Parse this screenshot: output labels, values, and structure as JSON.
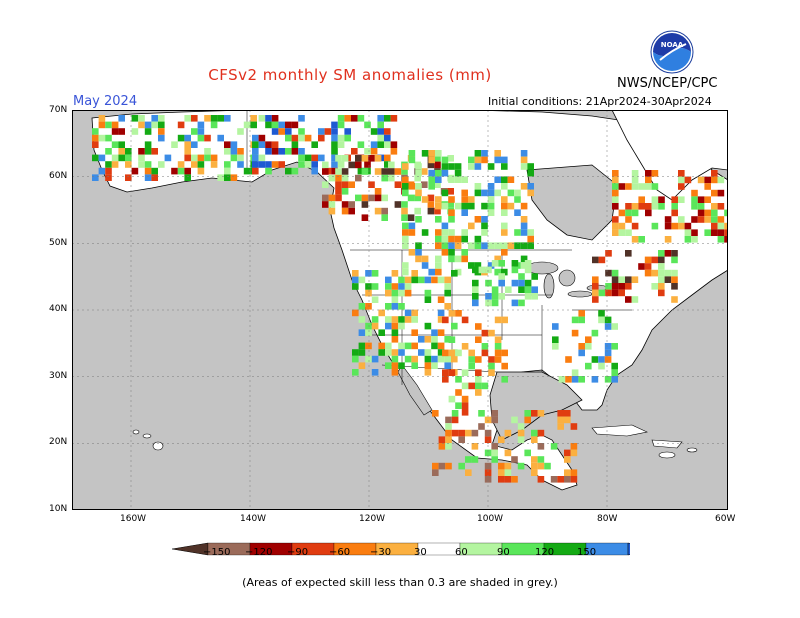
{
  "title": "CFSv2 monthly SM anomalies (mm)",
  "month_label": "May 2024",
  "initial_conditions": "Initial conditions: 21Apr2024-30Apr2024",
  "agency": "NWS/NCEP/CPC",
  "logo_text": "NOAA",
  "footnote": "(Areas of expected skill less than 0.3 are shaded in grey.)",
  "colors": {
    "no_skill": "#c4c4c4",
    "land_neutral": "#ffffff",
    "frame": "#000000",
    "gridline": "#7a7a7a"
  },
  "latitude_labels": [
    "70N",
    "60N",
    "50N",
    "40N",
    "30N",
    "20N",
    "10N"
  ],
  "longitude_labels": [
    "160W",
    "140W",
    "120W",
    "100W",
    "80W",
    "60W"
  ],
  "colorbar": {
    "tick_labels": [
      "−150",
      "−120",
      "−90",
      "−60",
      "−30",
      "30",
      "60",
      "90",
      "120",
      "150"
    ],
    "colors": [
      "#503228",
      "#9b6b5a",
      "#a00000",
      "#e03c10",
      "#fa7d10",
      "#fbb040",
      "#ffffff",
      "#b4f5a0",
      "#5ae65a",
      "#14aa14",
      "#3c8ce6",
      "#1e5ad2"
    ]
  }
}
